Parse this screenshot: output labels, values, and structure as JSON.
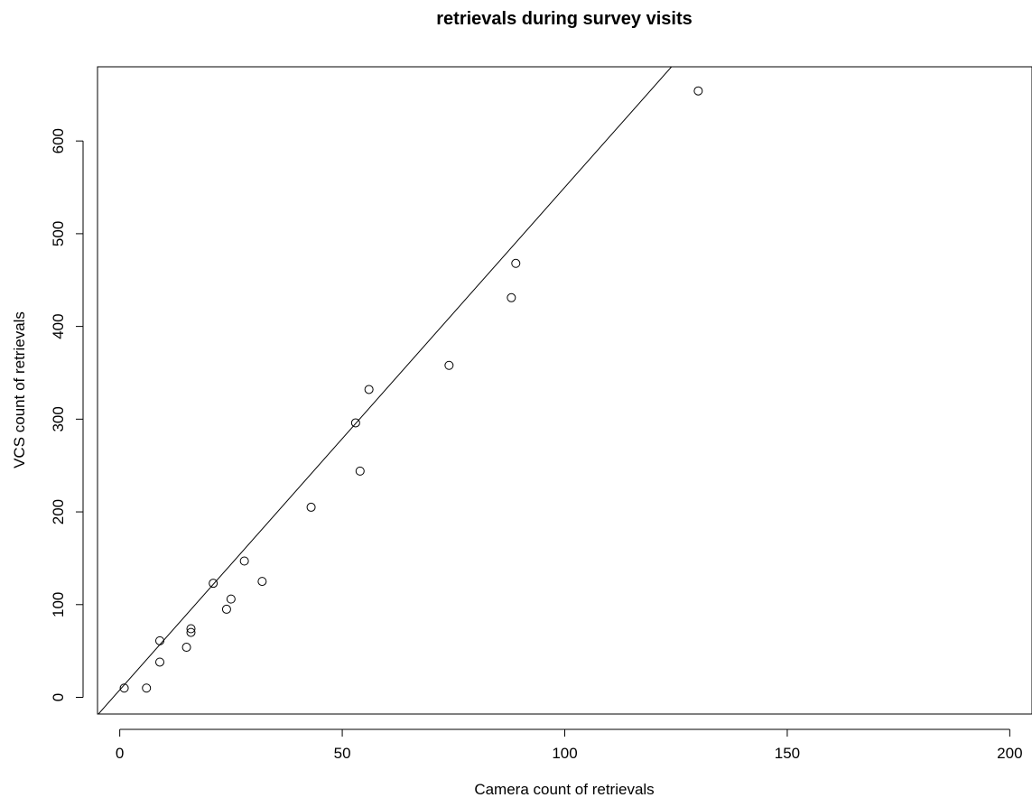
{
  "chart_data": {
    "type": "scatter",
    "title": "retrievals during survey visits",
    "xlabel": "Camera count of retrievals",
    "ylabel": "VCS count of retrievals",
    "xlim": [
      -5,
      205
    ],
    "ylim": [
      -18,
      680
    ],
    "x_ticks": [
      0,
      50,
      100,
      150,
      200
    ],
    "x_tick_labels": [
      "0",
      "50",
      "100",
      "150",
      "200"
    ],
    "y_ticks": [
      0,
      100,
      200,
      300,
      400,
      500,
      600
    ],
    "y_tick_labels": [
      "0",
      "100",
      "200",
      "300",
      "400",
      "500",
      "600"
    ],
    "grid": false,
    "legend": "none",
    "marker": "open-circle",
    "points": [
      {
        "x": 1,
        "y": 10
      },
      {
        "x": 6,
        "y": 10
      },
      {
        "x": 9,
        "y": 38
      },
      {
        "x": 9,
        "y": 61
      },
      {
        "x": 15,
        "y": 54
      },
      {
        "x": 16,
        "y": 70
      },
      {
        "x": 16,
        "y": 74
      },
      {
        "x": 21,
        "y": 123
      },
      {
        "x": 24,
        "y": 95
      },
      {
        "x": 25,
        "y": 106
      },
      {
        "x": 28,
        "y": 147
      },
      {
        "x": 32,
        "y": 125
      },
      {
        "x": 43,
        "y": 205
      },
      {
        "x": 53,
        "y": 296
      },
      {
        "x": 54,
        "y": 244
      },
      {
        "x": 56,
        "y": 332
      },
      {
        "x": 74,
        "y": 358
      },
      {
        "x": 88,
        "y": 431
      },
      {
        "x": 89,
        "y": 468
      },
      {
        "x": 130,
        "y": 654
      }
    ],
    "fit_line": {
      "intercept": 8,
      "slope": 5.42
    },
    "colors": {
      "points": "#000000",
      "line": "#000000",
      "axes": "#000000"
    }
  }
}
